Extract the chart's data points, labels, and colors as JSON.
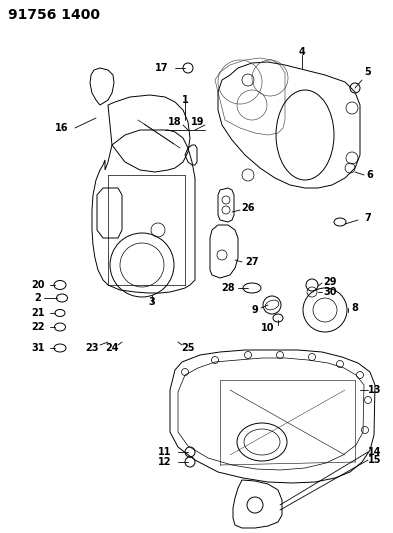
{
  "title": "91756 1400",
  "background_color": "#ffffff",
  "line_color": "#000000",
  "fig_width": 3.93,
  "fig_height": 5.33,
  "dpi": 100,
  "title_fontsize": 10,
  "label_fontsize": 7.0
}
